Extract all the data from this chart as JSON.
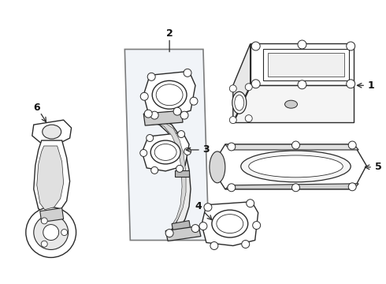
{
  "bg_color": "#ffffff",
  "line_color": "#2a2a2a",
  "panel_color": "#e8eef4",
  "part_color": "#f2f2f2",
  "shade_color": "#d8d8d8",
  "label_color": "#111111"
}
